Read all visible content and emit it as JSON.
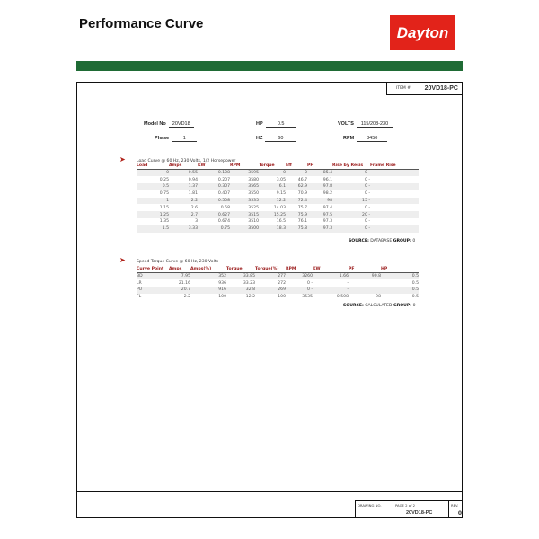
{
  "header": {
    "title": "Performance Curve",
    "logo": "Dayton",
    "brand_color": "#e2231a",
    "bar_color": "#1f6b35"
  },
  "item": {
    "label": "ITEM #",
    "value": "20VD18-PC"
  },
  "specs": {
    "model_label": "Model No",
    "model": "20VD18",
    "hp_label": "HP",
    "hp": "0.5",
    "volts_label": "VOLTS",
    "volts": "115/208-230",
    "phase_label": "Phase",
    "phase": "1",
    "hz_label": "HZ",
    "hz": "60",
    "rpm_label": "RPM",
    "rpm": "3450"
  },
  "load_curve": {
    "title": "Load Curve @ 60 Hz, 230 Volts, 1/2 Horsepower",
    "headers": [
      "Load",
      "Amps",
      "KW",
      "RPM",
      "Torque",
      "Eff",
      "PF",
      "Rise by Resis",
      "Frame Rise"
    ],
    "rows": [
      [
        "0",
        "0.55",
        "0.108",
        "3595",
        "0",
        "0",
        "85.4",
        "0 -"
      ],
      [
        "0.25",
        "0.94",
        "0.207",
        "3580",
        "3.05",
        "46.7",
        "96.1",
        "0 -"
      ],
      [
        "0.5",
        "1.37",
        "0.307",
        "3565",
        "6.1",
        "62.9",
        "97.8",
        "0 -"
      ],
      [
        "0.75",
        "1.81",
        "0.407",
        "3550",
        "9.15",
        "70.9",
        "98.2",
        "0 -"
      ],
      [
        "1",
        "2.2",
        "0.508",
        "3535",
        "12.2",
        "72.4",
        "98",
        "15 -"
      ],
      [
        "1.15",
        "2.6",
        "0.58",
        "3525",
        "14.03",
        "75.7",
        "97.4",
        "0 -"
      ],
      [
        "1.25",
        "2.7",
        "0.627",
        "3515",
        "15.25",
        "75.9",
        "97.5",
        "20 -"
      ],
      [
        "1.35",
        "3",
        "0.674",
        "3510",
        "16.5",
        "76.1",
        "97.3",
        "0 -"
      ],
      [
        "1.5",
        "3.33",
        "0.75",
        "3500",
        "18.3",
        "75.8",
        "97.3",
        "0 -"
      ]
    ],
    "source_label": "SOURCE:",
    "source": "DATABASE",
    "group_label": "GROUP:",
    "group": "0"
  },
  "speed_torque": {
    "title": "Speed Torque Curve @ 60 Hz, 230 Volts",
    "headers": [
      "Curve Point",
      "Amps",
      "Amps(%)",
      "Torque",
      "Torque(%)",
      "RPM",
      "KW",
      "PF",
      "HP"
    ],
    "rows": [
      [
        "BD",
        "7.95",
        "352",
        "33.85",
        "277",
        "3260",
        "1.66",
        "90.8",
        "0.5"
      ],
      [
        "LR",
        "21.16",
        "936",
        "33.23",
        "272",
        "0 -",
        "-",
        "",
        "0.5"
      ],
      [
        "PU",
        "20.7",
        "916",
        "32.8",
        "269",
        "0 -",
        "-",
        "",
        "0.5"
      ],
      [
        "FL",
        "2.2",
        "100",
        "12.2",
        "100",
        "3535",
        "0.508",
        "98",
        "0.5"
      ]
    ],
    "source_label": "SOURCE:",
    "source": "CALCULATED",
    "group_label": "GROUP:",
    "group": "0"
  },
  "footer": {
    "drawing_label": "DRAWING NO.",
    "page": "PAGE 2 of 2",
    "drawing_no": "20VD18-PC",
    "rev_label": "REV.",
    "rev": "0"
  }
}
